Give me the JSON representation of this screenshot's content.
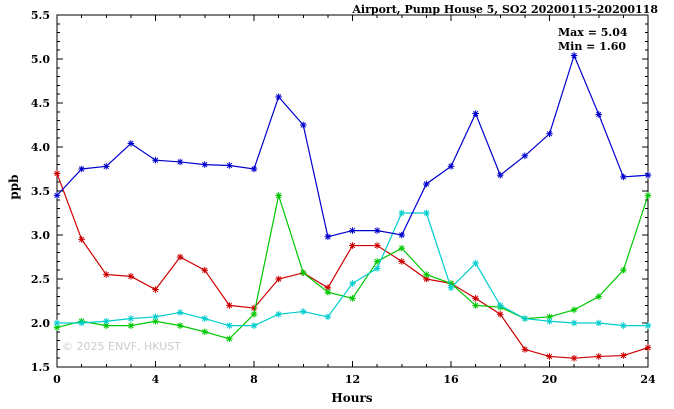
{
  "title": "Airport, Pump House 5, SO2 20200115-20200118",
  "annotation": {
    "max_label": "Max = 5.04",
    "min_label": "Min = 1.60"
  },
  "watermark": "© 2025 ENVF, HKUST",
  "chart_data": {
    "type": "line",
    "title": "Airport, Pump House 5, SO2 20200115-20200118",
    "xlabel": "Hours",
    "ylabel": "ppb",
    "xlim": [
      0,
      24
    ],
    "ylim": [
      1.5,
      5.5
    ],
    "grid": false,
    "legend": "none",
    "x_major_ticks": [
      0,
      4,
      8,
      12,
      16,
      20,
      24
    ],
    "x_minor_step": 1,
    "y_major_ticks": [
      1.5,
      2.0,
      2.5,
      3.0,
      3.5,
      4.0,
      4.5,
      5.0,
      5.5
    ],
    "y_minor_step": 0.1,
    "marker": "asterisk",
    "x": [
      0,
      1,
      2,
      3,
      4,
      5,
      6,
      7,
      8,
      9,
      10,
      11,
      12,
      13,
      14,
      15,
      16,
      17,
      18,
      19,
      20,
      21,
      22,
      23,
      24
    ],
    "series": [
      {
        "name": "red",
        "color": "#cd0000",
        "values": [
          3.7,
          2.95,
          2.55,
          2.53,
          2.38,
          2.75,
          2.6,
          2.2,
          2.17,
          2.5,
          2.57,
          2.4,
          2.88,
          2.88,
          2.7,
          2.5,
          2.45,
          2.28,
          2.1,
          1.7,
          1.62,
          1.6,
          1.62,
          1.63,
          1.72
        ]
      },
      {
        "name": "green",
        "color": "#00c800",
        "values": [
          1.95,
          2.02,
          1.97,
          1.97,
          2.02,
          1.97,
          1.9,
          1.82,
          2.1,
          3.45,
          2.57,
          2.35,
          2.28,
          2.7,
          2.85,
          2.55,
          2.45,
          2.2,
          2.18,
          2.05,
          2.07,
          2.15,
          2.3,
          2.6,
          3.45
        ]
      },
      {
        "name": "cyan",
        "color": "#00cdcd",
        "values": [
          2.0,
          2.0,
          2.02,
          2.05,
          2.07,
          2.12,
          2.05,
          1.97,
          1.97,
          2.1,
          2.13,
          2.07,
          2.45,
          2.62,
          3.25,
          3.25,
          2.4,
          2.68,
          2.2,
          2.05,
          2.02,
          2.0,
          2.0,
          1.97,
          1.97
        ]
      },
      {
        "name": "blue",
        "color": "#0000cd",
        "values": [
          3.45,
          3.75,
          3.78,
          4.04,
          3.85,
          3.83,
          3.8,
          3.79,
          3.75,
          4.57,
          4.25,
          2.98,
          3.05,
          3.05,
          3.0,
          3.58,
          3.78,
          4.38,
          3.68,
          3.9,
          4.15,
          5.04,
          4.37,
          3.66,
          3.68
        ]
      }
    ],
    "stats": {
      "max": 5.04,
      "min": 1.6
    }
  }
}
